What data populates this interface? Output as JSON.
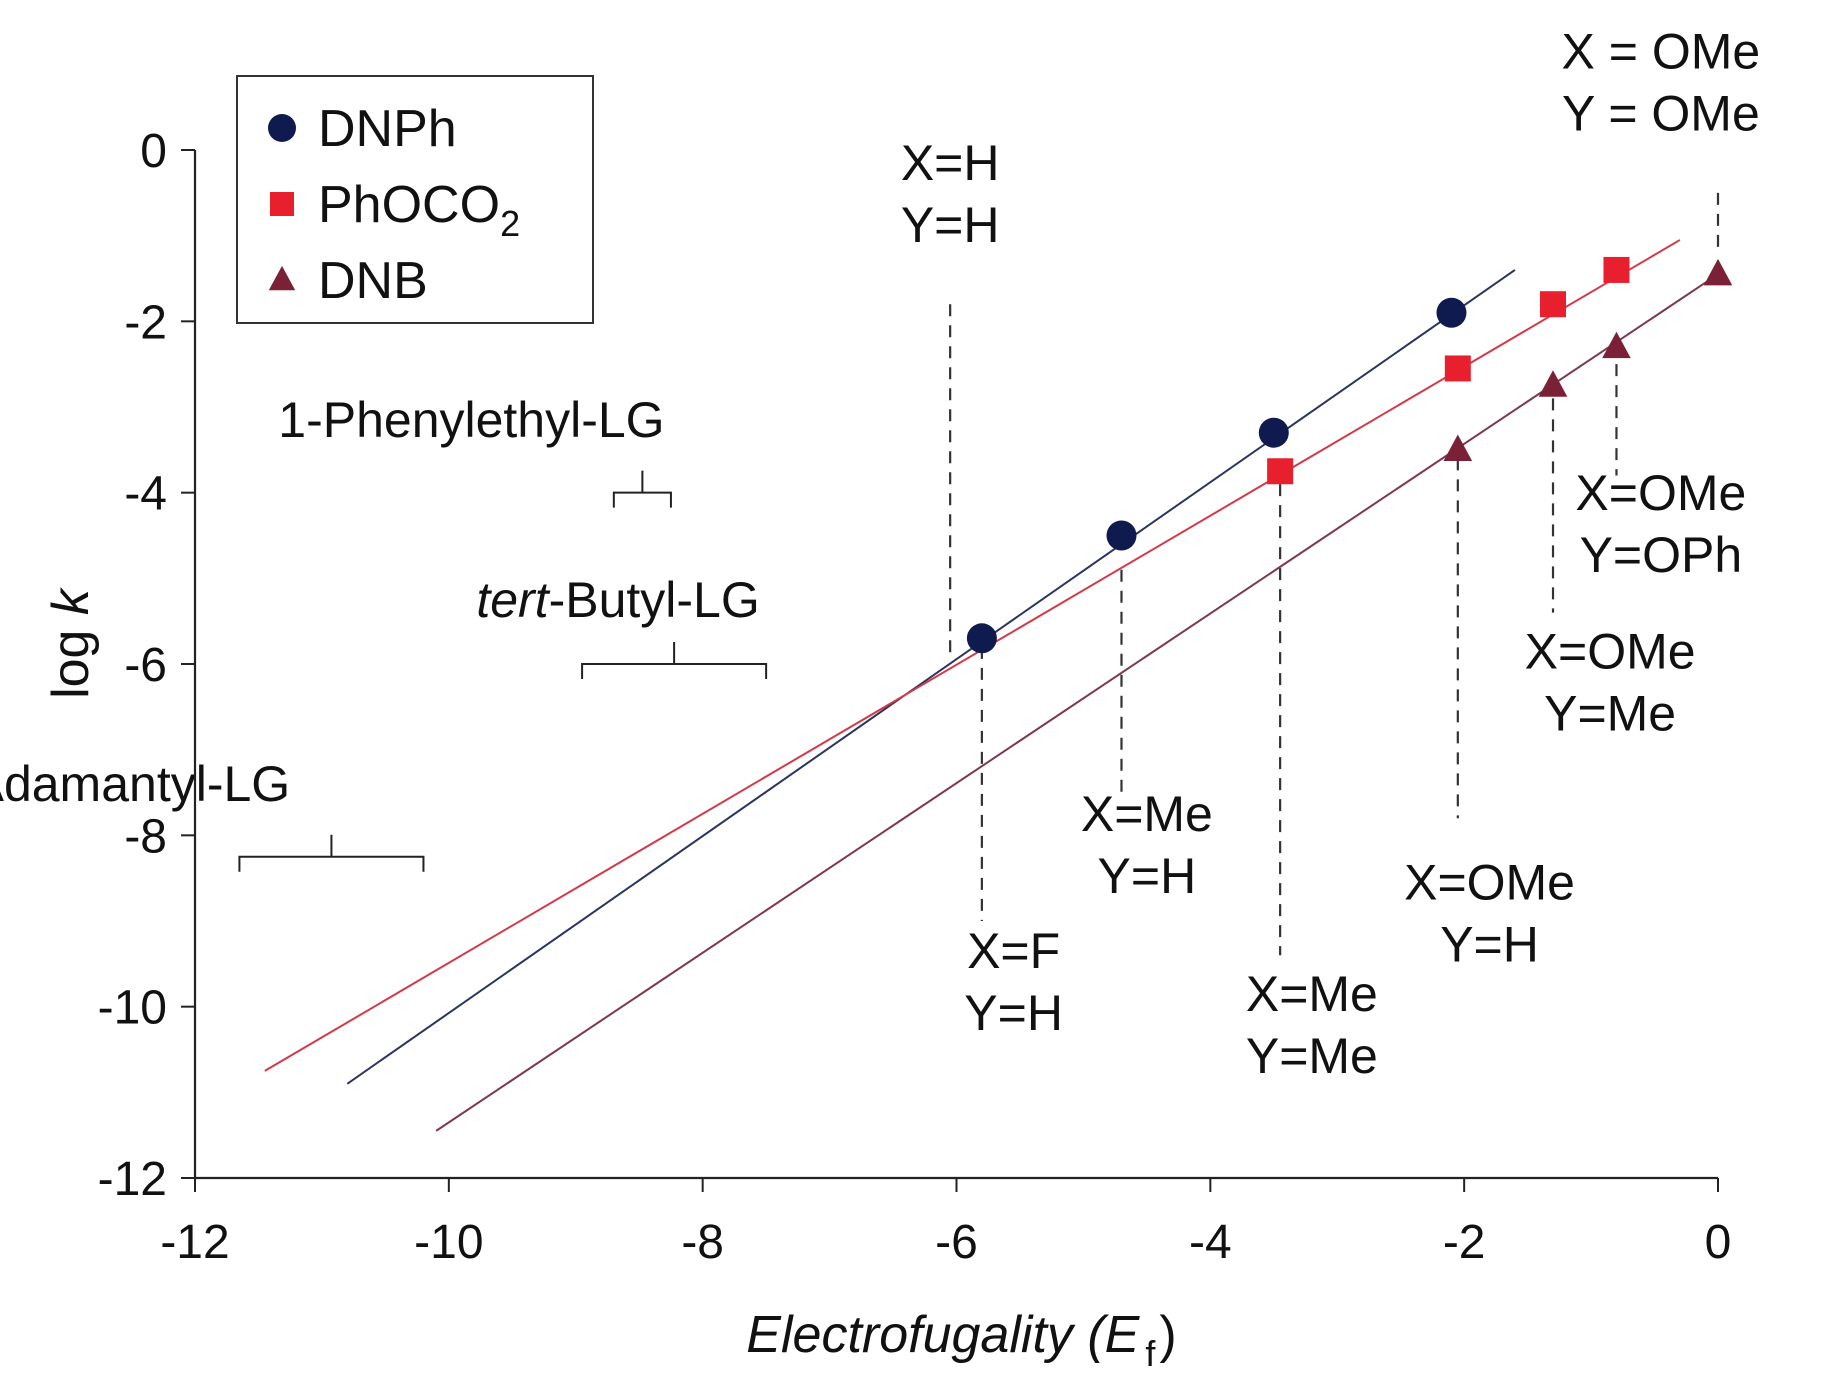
{
  "chart_data": {
    "type": "scatter",
    "xlabel_main": "Electrofugality (",
    "xlabel_sym": "E",
    "xlabel_sub": "f",
    "xlabel_close": ")",
    "ylabel_main": "log ",
    "ylabel_sym": "k",
    "xlim": [
      -12,
      0
    ],
    "ylim": [
      -12,
      0
    ],
    "xticks": [
      -12,
      -10,
      -8,
      -6,
      -4,
      -2,
      0
    ],
    "yticks": [
      0,
      -2,
      -4,
      -6,
      -8,
      -10,
      -12
    ],
    "legend": {
      "position": "top-left",
      "entries": [
        {
          "label": "DNPh",
          "marker": "circle",
          "color": "#0f1a4f"
        },
        {
          "label": "PhOCO",
          "sub": "2",
          "marker": "square",
          "color": "#e8202e"
        },
        {
          "label": "DNB",
          "marker": "triangle",
          "color": "#7a2138"
        }
      ]
    },
    "series": [
      {
        "name": "DNPh",
        "color": "#0f1a4f",
        "line_color": "#2b3560",
        "marker": "circle",
        "x": [
          -5.8,
          -4.7,
          -3.5,
          -2.1
        ],
        "y": [
          -5.7,
          -4.5,
          -3.3,
          -1.9
        ],
        "fit": {
          "x": [
            -10.8,
            -1.6
          ],
          "y": [
            -10.9,
            -1.4
          ]
        }
      },
      {
        "name": "PhOCO2",
        "color": "#e8202e",
        "line_color": "#d23a48",
        "marker": "square",
        "x": [
          -3.45,
          -2.05,
          -1.3,
          -0.8
        ],
        "y": [
          -3.75,
          -2.55,
          -1.8,
          -1.4
        ],
        "fit": {
          "x": [
            -11.45,
            -0.3
          ],
          "y": [
            -10.75,
            -1.05
          ]
        }
      },
      {
        "name": "DNB",
        "color": "#7a2138",
        "line_color": "#7d3852",
        "marker": "triangle",
        "x": [
          -2.05,
          -1.3,
          -0.8,
          0.0
        ],
        "y": [
          -3.5,
          -2.75,
          -2.3,
          -1.45
        ],
        "fit": {
          "x": [
            -10.1,
            0.0
          ],
          "y": [
            -11.45,
            -1.45
          ]
        }
      }
    ],
    "dashed_lines": [
      {
        "x": -6.05,
        "y1": -1.8,
        "y2": -5.9
      },
      {
        "x": -5.8,
        "y1": -5.8,
        "y2": -9.0
      },
      {
        "x": -4.7,
        "y1": -4.9,
        "y2": -7.5
      },
      {
        "x": -3.45,
        "y1": -3.9,
        "y2": -9.4
      },
      {
        "x": -2.05,
        "y1": -3.6,
        "y2": -7.8
      },
      {
        "x": -1.3,
        "y1": -2.9,
        "y2": -5.4
      },
      {
        "x": -0.8,
        "y1": -2.5,
        "y2": -3.8
      },
      {
        "x": 0.0,
        "y1": -0.5,
        "y2": -1.2
      }
    ],
    "annotations": [
      {
        "lines": [
          "X=H",
          "Y=H"
        ],
        "x": -6.05,
        "y": -0.35
      },
      {
        "lines": [
          "X=F",
          "Y=H"
        ],
        "x": -5.55,
        "y": -9.55
      },
      {
        "lines": [
          "X=Me",
          "Y=H"
        ],
        "x": -4.5,
        "y": -7.95
      },
      {
        "lines": [
          "X=Me",
          "Y=Me"
        ],
        "x": -3.2,
        "y": -10.05
      },
      {
        "lines": [
          "X=OMe",
          "Y=H"
        ],
        "x": -1.8,
        "y": -8.75
      },
      {
        "lines": [
          "X=OMe",
          "Y=Me"
        ],
        "x": -0.85,
        "y": -6.05
      },
      {
        "lines": [
          "X=OMe",
          "Y=OPh"
        ],
        "x": -0.45,
        "y": -4.2
      },
      {
        "lines": [
          "X = OMe",
          "Y = OMe"
        ],
        "x": -0.45,
        "y": 0.95
      }
    ],
    "ranges": [
      {
        "label": "1-Phenylethyl-LG",
        "x1": -8.7,
        "x2": -8.25,
        "y": -4.0,
        "label_x": -8.3,
        "label_y": -3.35
      },
      {
        "label_italic": "tert",
        "label": "-Butyl-LG",
        "x1": -8.95,
        "x2": -7.5,
        "y": -6.0,
        "label_x": -7.55,
        "label_y": -5.45
      },
      {
        "label": "Adamantyl-LG",
        "x1": -11.65,
        "x2": -10.2,
        "y": -8.25,
        "label_x": -11.25,
        "label_y": -7.6
      }
    ]
  }
}
